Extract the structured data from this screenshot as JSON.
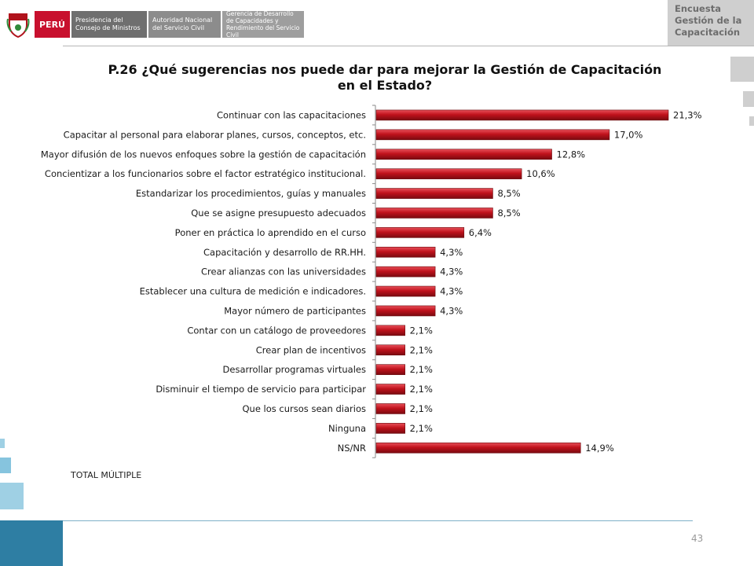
{
  "header": {
    "country": "PERÚ",
    "institutions": [
      "Presidencia del Consejo de Ministros",
      "Autoridad Nacional del Servicio Civil",
      "Gerencia de Desarrollo de Capacidades y Rendimiento del Servicio Civil"
    ],
    "survey_tag": [
      "Encuesta",
      "Gestión de la",
      "Capacitación"
    ]
  },
  "title": "P.26 ¿Qué sugerencias nos puede dar para mejorar la Gestión de Capacitación en el Estado?",
  "note": "TOTAL MÚLTIPLE",
  "page_number": "43",
  "colors": {
    "bar": "#c0121c",
    "bar_dark": "#7a0a10",
    "bar_light": "#e8505a",
    "accent_blue": "#2e7ea3"
  },
  "chart_data": {
    "type": "bar",
    "orientation": "horizontal",
    "categories": [
      "Continuar con las capacitaciones",
      "Capacitar al personal para elaborar planes, cursos, conceptos, etc.",
      "Mayor difusión de los nuevos enfoques sobre la gestión de capacitación",
      "Concientizar a los funcionarios sobre el factor estratégico institucional.",
      "Estandarizar los procedimientos, guías y manuales",
      "Que se asigne presupuesto adecuados",
      "Poner en práctica lo aprendido en el curso",
      "Capacitación y desarrollo de RR.HH.",
      "Crear alianzas con las universidades",
      "Establecer una cultura de medición e indicadores.",
      "Mayor número de participantes",
      "Contar con un catálogo de proveedores",
      "Crear plan de incentivos",
      "Desarrollar programas virtuales",
      "Disminuir el tiempo de servicio para participar",
      "Que los cursos sean diarios",
      "Ninguna",
      "NS/NR"
    ],
    "values": [
      21.3,
      17.0,
      12.8,
      10.6,
      8.5,
      8.5,
      6.4,
      4.3,
      4.3,
      4.3,
      4.3,
      2.1,
      2.1,
      2.1,
      2.1,
      2.1,
      2.1,
      14.9
    ],
    "data_labels": [
      "21,3%",
      "17,0%",
      "12,8%",
      "10,6%",
      "8,5%",
      "8,5%",
      "6,4%",
      "4,3%",
      "4,3%",
      "4,3%",
      "4,3%",
      "2,1%",
      "2,1%",
      "2,1%",
      "2,1%",
      "2,1%",
      "2,1%",
      "14,9%"
    ],
    "unit": "%",
    "xlim": [
      0,
      21.3
    ],
    "grid": false,
    "legend": "none"
  }
}
